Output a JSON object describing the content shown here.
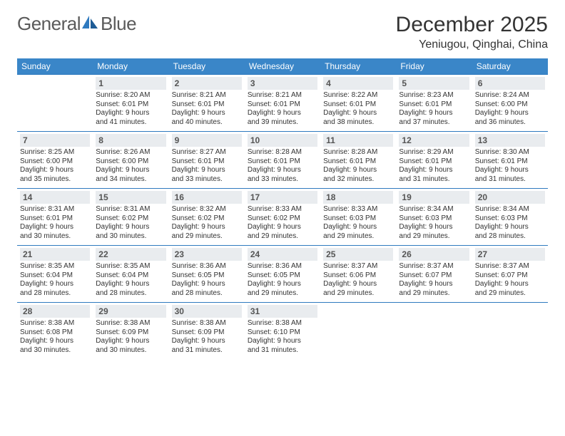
{
  "colors": {
    "header_bg": "#3a86c8",
    "header_text": "#ffffff",
    "daynum_bg": "#e9ecef",
    "daynum_text": "#555555",
    "body_text": "#333333",
    "row_divider": "#2f7abf",
    "logo_gray": "#5a5a5a",
    "logo_blue": "#2f7abf",
    "page_bg": "#ffffff"
  },
  "typography": {
    "title_fontsize": 30,
    "location_fontsize": 16,
    "header_fontsize": 12,
    "daynum_fontsize": 12,
    "info_fontsize": 10,
    "logo_fontsize": 26
  },
  "logo": {
    "part1": "General",
    "part2": "Blue"
  },
  "title": "December 2025",
  "location": "Yeniugou, Qinghai, China",
  "weekdays": [
    "Sunday",
    "Monday",
    "Tuesday",
    "Wednesday",
    "Thursday",
    "Friday",
    "Saturday"
  ],
  "weeks": [
    [
      null,
      {
        "n": "1",
        "sr": "Sunrise: 8:20 AM",
        "ss": "Sunset: 6:01 PM",
        "d1": "Daylight: 9 hours",
        "d2": "and 41 minutes."
      },
      {
        "n": "2",
        "sr": "Sunrise: 8:21 AM",
        "ss": "Sunset: 6:01 PM",
        "d1": "Daylight: 9 hours",
        "d2": "and 40 minutes."
      },
      {
        "n": "3",
        "sr": "Sunrise: 8:21 AM",
        "ss": "Sunset: 6:01 PM",
        "d1": "Daylight: 9 hours",
        "d2": "and 39 minutes."
      },
      {
        "n": "4",
        "sr": "Sunrise: 8:22 AM",
        "ss": "Sunset: 6:01 PM",
        "d1": "Daylight: 9 hours",
        "d2": "and 38 minutes."
      },
      {
        "n": "5",
        "sr": "Sunrise: 8:23 AM",
        "ss": "Sunset: 6:01 PM",
        "d1": "Daylight: 9 hours",
        "d2": "and 37 minutes."
      },
      {
        "n": "6",
        "sr": "Sunrise: 8:24 AM",
        "ss": "Sunset: 6:00 PM",
        "d1": "Daylight: 9 hours",
        "d2": "and 36 minutes."
      }
    ],
    [
      {
        "n": "7",
        "sr": "Sunrise: 8:25 AM",
        "ss": "Sunset: 6:00 PM",
        "d1": "Daylight: 9 hours",
        "d2": "and 35 minutes."
      },
      {
        "n": "8",
        "sr": "Sunrise: 8:26 AM",
        "ss": "Sunset: 6:00 PM",
        "d1": "Daylight: 9 hours",
        "d2": "and 34 minutes."
      },
      {
        "n": "9",
        "sr": "Sunrise: 8:27 AM",
        "ss": "Sunset: 6:01 PM",
        "d1": "Daylight: 9 hours",
        "d2": "and 33 minutes."
      },
      {
        "n": "10",
        "sr": "Sunrise: 8:28 AM",
        "ss": "Sunset: 6:01 PM",
        "d1": "Daylight: 9 hours",
        "d2": "and 33 minutes."
      },
      {
        "n": "11",
        "sr": "Sunrise: 8:28 AM",
        "ss": "Sunset: 6:01 PM",
        "d1": "Daylight: 9 hours",
        "d2": "and 32 minutes."
      },
      {
        "n": "12",
        "sr": "Sunrise: 8:29 AM",
        "ss": "Sunset: 6:01 PM",
        "d1": "Daylight: 9 hours",
        "d2": "and 31 minutes."
      },
      {
        "n": "13",
        "sr": "Sunrise: 8:30 AM",
        "ss": "Sunset: 6:01 PM",
        "d1": "Daylight: 9 hours",
        "d2": "and 31 minutes."
      }
    ],
    [
      {
        "n": "14",
        "sr": "Sunrise: 8:31 AM",
        "ss": "Sunset: 6:01 PM",
        "d1": "Daylight: 9 hours",
        "d2": "and 30 minutes."
      },
      {
        "n": "15",
        "sr": "Sunrise: 8:31 AM",
        "ss": "Sunset: 6:02 PM",
        "d1": "Daylight: 9 hours",
        "d2": "and 30 minutes."
      },
      {
        "n": "16",
        "sr": "Sunrise: 8:32 AM",
        "ss": "Sunset: 6:02 PM",
        "d1": "Daylight: 9 hours",
        "d2": "and 29 minutes."
      },
      {
        "n": "17",
        "sr": "Sunrise: 8:33 AM",
        "ss": "Sunset: 6:02 PM",
        "d1": "Daylight: 9 hours",
        "d2": "and 29 minutes."
      },
      {
        "n": "18",
        "sr": "Sunrise: 8:33 AM",
        "ss": "Sunset: 6:03 PM",
        "d1": "Daylight: 9 hours",
        "d2": "and 29 minutes."
      },
      {
        "n": "19",
        "sr": "Sunrise: 8:34 AM",
        "ss": "Sunset: 6:03 PM",
        "d1": "Daylight: 9 hours",
        "d2": "and 29 minutes."
      },
      {
        "n": "20",
        "sr": "Sunrise: 8:34 AM",
        "ss": "Sunset: 6:03 PM",
        "d1": "Daylight: 9 hours",
        "d2": "and 28 minutes."
      }
    ],
    [
      {
        "n": "21",
        "sr": "Sunrise: 8:35 AM",
        "ss": "Sunset: 6:04 PM",
        "d1": "Daylight: 9 hours",
        "d2": "and 28 minutes."
      },
      {
        "n": "22",
        "sr": "Sunrise: 8:35 AM",
        "ss": "Sunset: 6:04 PM",
        "d1": "Daylight: 9 hours",
        "d2": "and 28 minutes."
      },
      {
        "n": "23",
        "sr": "Sunrise: 8:36 AM",
        "ss": "Sunset: 6:05 PM",
        "d1": "Daylight: 9 hours",
        "d2": "and 28 minutes."
      },
      {
        "n": "24",
        "sr": "Sunrise: 8:36 AM",
        "ss": "Sunset: 6:05 PM",
        "d1": "Daylight: 9 hours",
        "d2": "and 29 minutes."
      },
      {
        "n": "25",
        "sr": "Sunrise: 8:37 AM",
        "ss": "Sunset: 6:06 PM",
        "d1": "Daylight: 9 hours",
        "d2": "and 29 minutes."
      },
      {
        "n": "26",
        "sr": "Sunrise: 8:37 AM",
        "ss": "Sunset: 6:07 PM",
        "d1": "Daylight: 9 hours",
        "d2": "and 29 minutes."
      },
      {
        "n": "27",
        "sr": "Sunrise: 8:37 AM",
        "ss": "Sunset: 6:07 PM",
        "d1": "Daylight: 9 hours",
        "d2": "and 29 minutes."
      }
    ],
    [
      {
        "n": "28",
        "sr": "Sunrise: 8:38 AM",
        "ss": "Sunset: 6:08 PM",
        "d1": "Daylight: 9 hours",
        "d2": "and 30 minutes."
      },
      {
        "n": "29",
        "sr": "Sunrise: 8:38 AM",
        "ss": "Sunset: 6:09 PM",
        "d1": "Daylight: 9 hours",
        "d2": "and 30 minutes."
      },
      {
        "n": "30",
        "sr": "Sunrise: 8:38 AM",
        "ss": "Sunset: 6:09 PM",
        "d1": "Daylight: 9 hours",
        "d2": "and 31 minutes."
      },
      {
        "n": "31",
        "sr": "Sunrise: 8:38 AM",
        "ss": "Sunset: 6:10 PM",
        "d1": "Daylight: 9 hours",
        "d2": "and 31 minutes."
      },
      null,
      null,
      null
    ]
  ]
}
